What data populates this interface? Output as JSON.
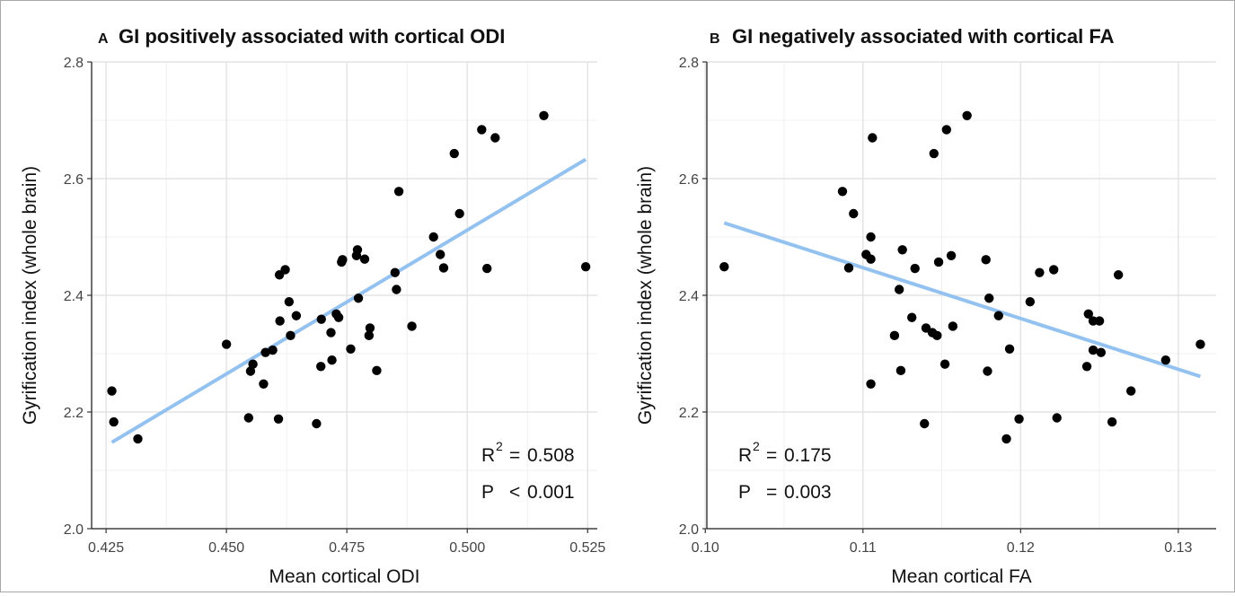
{
  "chart_data": [
    {
      "type": "scatter",
      "panel_label": "A",
      "title": "GI positively associated with cortical ODI",
      "xlabel": "Mean cortical ODI",
      "ylabel": "Gyrification index (whole brain)",
      "xlim": [
        0.422,
        0.527
      ],
      "ylim": [
        2.0,
        2.8
      ],
      "xticks": [
        "0.425",
        "0.450",
        "0.475",
        "0.500",
        "0.525"
      ],
      "xtick_values": [
        0.425,
        0.45,
        0.475,
        0.5,
        0.525
      ],
      "yticks": [
        "2.0",
        "2.2",
        "2.4",
        "2.6",
        "2.8"
      ],
      "ytick_values": [
        2.0,
        2.2,
        2.4,
        2.6,
        2.8
      ],
      "grid": true,
      "points": [
        {
          "x": 0.4262,
          "y": 2.236
        },
        {
          "x": 0.4266,
          "y": 2.183
        },
        {
          "x": 0.4316,
          "y": 2.154
        },
        {
          "x": 0.45,
          "y": 2.316
        },
        {
          "x": 0.4546,
          "y": 2.19
        },
        {
          "x": 0.455,
          "y": 2.27
        },
        {
          "x": 0.4555,
          "y": 2.282
        },
        {
          "x": 0.4577,
          "y": 2.248
        },
        {
          "x": 0.4581,
          "y": 2.302
        },
        {
          "x": 0.4596,
          "y": 2.306
        },
        {
          "x": 0.4608,
          "y": 2.188
        },
        {
          "x": 0.461,
          "y": 2.435
        },
        {
          "x": 0.4611,
          "y": 2.356
        },
        {
          "x": 0.4622,
          "y": 2.444
        },
        {
          "x": 0.463,
          "y": 2.389
        },
        {
          "x": 0.4633,
          "y": 2.331
        },
        {
          "x": 0.4645,
          "y": 2.365
        },
        {
          "x": 0.4687,
          "y": 2.18
        },
        {
          "x": 0.4696,
          "y": 2.278
        },
        {
          "x": 0.4697,
          "y": 2.359
        },
        {
          "x": 0.4717,
          "y": 2.336
        },
        {
          "x": 0.4719,
          "y": 2.289
        },
        {
          "x": 0.4728,
          "y": 2.368
        },
        {
          "x": 0.4733,
          "y": 2.362
        },
        {
          "x": 0.4739,
          "y": 2.457
        },
        {
          "x": 0.4741,
          "y": 2.461
        },
        {
          "x": 0.4758,
          "y": 2.308
        },
        {
          "x": 0.477,
          "y": 2.468
        },
        {
          "x": 0.4772,
          "y": 2.478
        },
        {
          "x": 0.4774,
          "y": 2.395
        },
        {
          "x": 0.4787,
          "y": 2.462
        },
        {
          "x": 0.4796,
          "y": 2.331
        },
        {
          "x": 0.4798,
          "y": 2.344
        },
        {
          "x": 0.4812,
          "y": 2.271
        },
        {
          "x": 0.485,
          "y": 2.439
        },
        {
          "x": 0.4853,
          "y": 2.41
        },
        {
          "x": 0.4858,
          "y": 2.578
        },
        {
          "x": 0.4885,
          "y": 2.347
        },
        {
          "x": 0.493,
          "y": 2.5
        },
        {
          "x": 0.4944,
          "y": 2.47
        },
        {
          "x": 0.4951,
          "y": 2.447
        },
        {
          "x": 0.4973,
          "y": 2.643
        },
        {
          "x": 0.4984,
          "y": 2.54
        },
        {
          "x": 0.503,
          "y": 2.684
        },
        {
          "x": 0.5041,
          "y": 2.446
        },
        {
          "x": 0.5058,
          "y": 2.67
        },
        {
          "x": 0.5159,
          "y": 2.708
        },
        {
          "x": 0.5246,
          "y": 2.449
        }
      ],
      "fit_line": {
        "x": [
          0.4262,
          0.5246
        ],
        "y": [
          2.148,
          2.633
        ],
        "color": "#94c2f0"
      },
      "annotations": [
        {
          "label": "R",
          "sup": "2",
          "op": "=",
          "value": "0.508"
        },
        {
          "label": "P",
          "sup": "",
          "op": "<",
          "value": "0.001"
        }
      ]
    },
    {
      "type": "scatter",
      "panel_label": "B",
      "title": "GI negatively associated with cortical FA",
      "xlabel": "Mean cortical FA",
      "ylabel": "Gyrification index (whole brain)",
      "xlim": [
        0.1001,
        0.1324
      ],
      "ylim": [
        2.0,
        2.8
      ],
      "xticks": [
        "0.10",
        "0.11",
        "0.12",
        "0.13"
      ],
      "xtick_values": [
        0.1,
        0.11,
        0.12,
        0.13
      ],
      "yticks": [
        "2.0",
        "2.2",
        "2.4",
        "2.6",
        "2.8"
      ],
      "ytick_values": [
        2.0,
        2.2,
        2.4,
        2.6,
        2.8
      ],
      "grid": true,
      "points": [
        {
          "x": 0.1012,
          "y": 2.449
        },
        {
          "x": 0.1087,
          "y": 2.578
        },
        {
          "x": 0.1091,
          "y": 2.447
        },
        {
          "x": 0.1094,
          "y": 2.54
        },
        {
          "x": 0.1102,
          "y": 2.47
        },
        {
          "x": 0.1105,
          "y": 2.462
        },
        {
          "x": 0.1105,
          "y": 2.5
        },
        {
          "x": 0.1106,
          "y": 2.67
        },
        {
          "x": 0.1105,
          "y": 2.248
        },
        {
          "x": 0.112,
          "y": 2.331
        },
        {
          "x": 0.1123,
          "y": 2.41
        },
        {
          "x": 0.1125,
          "y": 2.478
        },
        {
          "x": 0.1124,
          "y": 2.271
        },
        {
          "x": 0.1131,
          "y": 2.362
        },
        {
          "x": 0.1133,
          "y": 2.446
        },
        {
          "x": 0.1139,
          "y": 2.18
        },
        {
          "x": 0.114,
          "y": 2.344
        },
        {
          "x": 0.1144,
          "y": 2.336
        },
        {
          "x": 0.1145,
          "y": 2.643
        },
        {
          "x": 0.1147,
          "y": 2.331
        },
        {
          "x": 0.1148,
          "y": 2.457
        },
        {
          "x": 0.1152,
          "y": 2.282
        },
        {
          "x": 0.1153,
          "y": 2.684
        },
        {
          "x": 0.1156,
          "y": 2.468
        },
        {
          "x": 0.1157,
          "y": 2.347
        },
        {
          "x": 0.1166,
          "y": 2.708
        },
        {
          "x": 0.1178,
          "y": 2.461
        },
        {
          "x": 0.118,
          "y": 2.395
        },
        {
          "x": 0.1179,
          "y": 2.27
        },
        {
          "x": 0.1186,
          "y": 2.365
        },
        {
          "x": 0.1191,
          "y": 2.154
        },
        {
          "x": 0.1193,
          "y": 2.308
        },
        {
          "x": 0.1199,
          "y": 2.188
        },
        {
          "x": 0.1206,
          "y": 2.389
        },
        {
          "x": 0.1212,
          "y": 2.439
        },
        {
          "x": 0.1221,
          "y": 2.444
        },
        {
          "x": 0.1223,
          "y": 2.19
        },
        {
          "x": 0.1242,
          "y": 2.278
        },
        {
          "x": 0.1243,
          "y": 2.368
        },
        {
          "x": 0.1246,
          "y": 2.306
        },
        {
          "x": 0.1246,
          "y": 2.356
        },
        {
          "x": 0.125,
          "y": 2.356
        },
        {
          "x": 0.1251,
          "y": 2.302
        },
        {
          "x": 0.1258,
          "y": 2.183
        },
        {
          "x": 0.1262,
          "y": 2.435
        },
        {
          "x": 0.127,
          "y": 2.236
        },
        {
          "x": 0.1292,
          "y": 2.289
        },
        {
          "x": 0.1314,
          "y": 2.316
        }
      ],
      "fit_line": {
        "x": [
          0.1012,
          0.1314
        ],
        "y": [
          2.524,
          2.261
        ],
        "color": "#94c2f0"
      },
      "annotations": [
        {
          "label": "R",
          "sup": "2",
          "op": "=",
          "value": "0.175"
        },
        {
          "label": "P",
          "sup": "",
          "op": "=",
          "value": "0.003"
        }
      ]
    }
  ]
}
